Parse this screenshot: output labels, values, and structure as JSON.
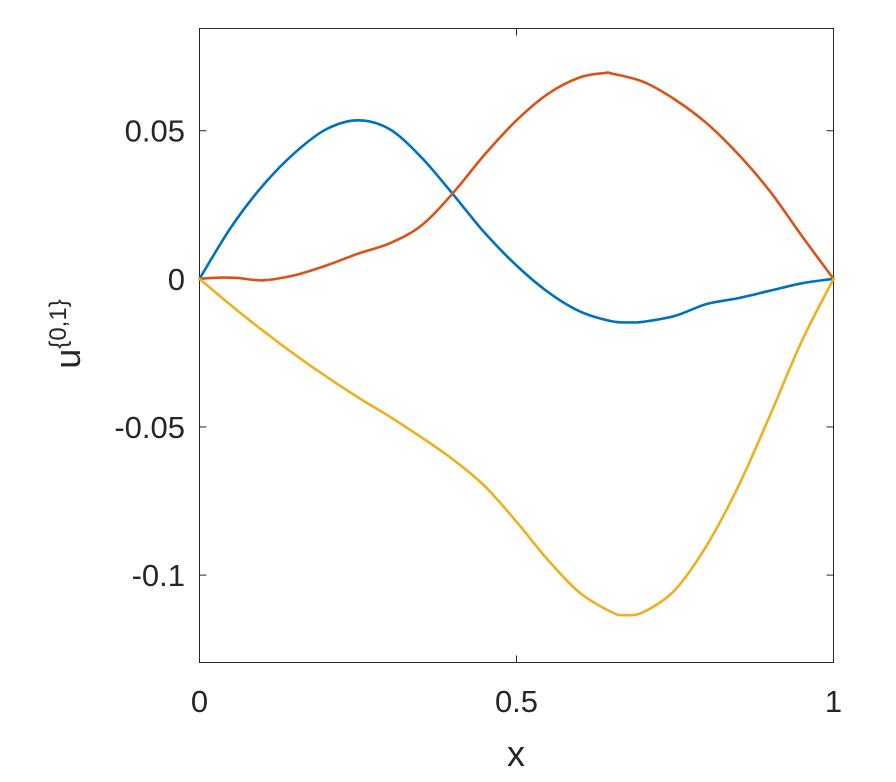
{
  "chart_data": {
    "type": "line",
    "xlabel": "x",
    "ylabel": {
      "base": "u",
      "superscript": "{0,1}"
    },
    "xlim": [
      0,
      1
    ],
    "ylim": [
      -0.1295,
      0.0845
    ],
    "x_ticks": [
      {
        "value": 0,
        "label": "0"
      },
      {
        "value": 0.5,
        "label": "0.5"
      },
      {
        "value": 1,
        "label": "1"
      }
    ],
    "y_ticks": [
      {
        "value": 0.05,
        "label": "0.05"
      },
      {
        "value": 0,
        "label": "0"
      },
      {
        "value": -0.05,
        "label": "-0.05"
      },
      {
        "value": -0.1,
        "label": "-0.1"
      }
    ],
    "grid": false,
    "legend": "none",
    "series": [
      {
        "color": "#0072BD",
        "x": [
          0,
          0.05,
          0.1,
          0.15,
          0.2,
          0.25,
          0.3,
          0.35,
          0.4,
          0.45,
          0.5,
          0.55,
          0.6,
          0.65,
          0.68,
          0.7,
          0.75,
          0.8,
          0.85,
          0.9,
          0.95,
          1.0
        ],
        "y": [
          0,
          0.0175,
          0.0315,
          0.0425,
          0.0505,
          0.0535,
          0.0505,
          0.041,
          0.0285,
          0.0155,
          0.0045,
          -0.0045,
          -0.011,
          -0.0143,
          -0.0147,
          -0.0145,
          -0.0125,
          -0.0085,
          -0.0065,
          -0.004,
          -0.0015,
          0
        ]
      },
      {
        "color": "#D95319",
        "x": [
          0,
          0.03,
          0.06,
          0.1,
          0.15,
          0.2,
          0.25,
          0.3,
          0.35,
          0.4,
          0.45,
          0.5,
          0.55,
          0.6,
          0.64,
          0.65,
          0.7,
          0.75,
          0.8,
          0.85,
          0.9,
          0.95,
          1.0
        ],
        "y": [
          0,
          0.0004,
          0.0003,
          -0.0005,
          0.0012,
          0.0045,
          0.0085,
          0.012,
          0.018,
          0.029,
          0.042,
          0.0535,
          0.0625,
          0.068,
          0.0695,
          0.0693,
          0.0665,
          0.0605,
          0.0525,
          0.042,
          0.0295,
          0.0145,
          0
        ]
      },
      {
        "color": "#EDB120",
        "x": [
          0,
          0.05,
          0.1,
          0.15,
          0.2,
          0.25,
          0.3,
          0.35,
          0.4,
          0.45,
          0.5,
          0.55,
          0.6,
          0.65,
          0.67,
          0.7,
          0.75,
          0.8,
          0.85,
          0.9,
          0.95,
          1.0
        ],
        "y": [
          0,
          -0.009,
          -0.0175,
          -0.0255,
          -0.033,
          -0.04,
          -0.0465,
          -0.0535,
          -0.061,
          -0.07,
          -0.082,
          -0.095,
          -0.106,
          -0.1125,
          -0.1135,
          -0.1125,
          -0.105,
          -0.09,
          -0.07,
          -0.046,
          -0.021,
          0
        ]
      }
    ]
  }
}
